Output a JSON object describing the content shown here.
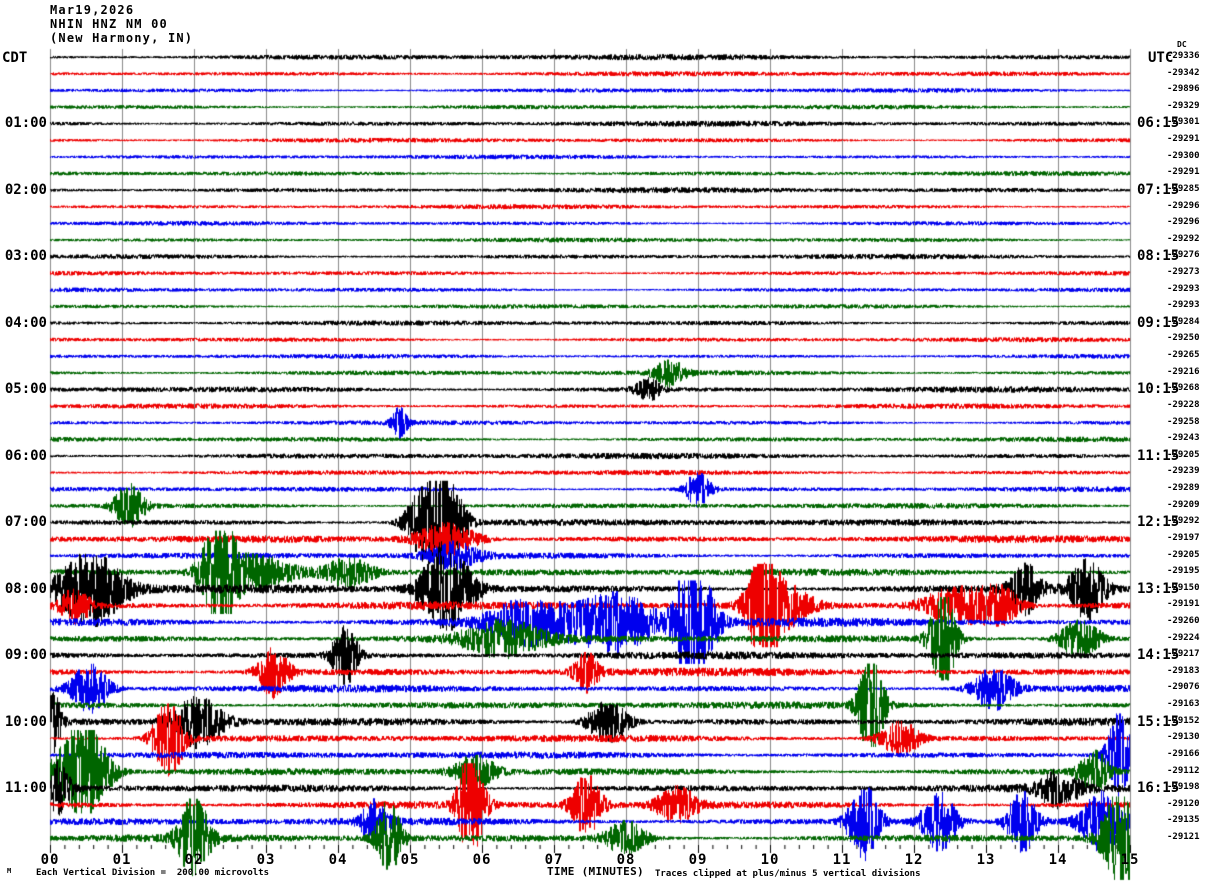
{
  "header": {
    "date": "Mar19,2026",
    "station": "NHIN HNZ NM 00",
    "location": "(New Harmony, IN)"
  },
  "axes": {
    "left_tz": "CDT",
    "right_tz": "UTC",
    "dc_label": "DC",
    "left_hours": [
      "01:00",
      "02:00",
      "03:00",
      "04:00",
      "05:00",
      "06:00",
      "07:00",
      "08:00",
      "09:00",
      "10:00",
      "11:00"
    ],
    "right_hours": [
      "06:15",
      "07:15",
      "08:15",
      "09:15",
      "10:15",
      "11:15",
      "12:15",
      "13:15",
      "14:15",
      "15:15",
      "16:15"
    ],
    "minute_labels": [
      "00",
      "01",
      "02",
      "03",
      "04",
      "05",
      "06",
      "07",
      "08",
      "09",
      "10",
      "11",
      "12",
      "13",
      "14",
      "15"
    ],
    "dc_values": [
      "-29336",
      "-29342",
      "-29896",
      "-29329",
      "-29301",
      "-29291",
      "-29300",
      "-29291",
      "-29285",
      "-29296",
      "-29296",
      "-29292",
      "-29276",
      "-29273",
      "-29293",
      "-29293",
      "-29284",
      "-29250",
      "-29265",
      "-29216",
      "-29268",
      "-29228",
      "-29258",
      "-29243",
      "-29205",
      "-29239",
      "-29289",
      "-29209",
      "-29292",
      "-29197",
      "-29205",
      "-29195",
      "-29150",
      "-29191",
      "-29260",
      "-29224",
      "-29217",
      "-29183",
      "-29076",
      "-29163",
      "-29152",
      "-29130",
      "-29166",
      "-29112",
      "-29198",
      "-29120",
      "-29135",
      "-29121"
    ]
  },
  "footer": {
    "mark": "M",
    "scale_note": "Each Vertical Division =  200.00 microvolts",
    "x_title": "TIME (MINUTES)",
    "clip_note": "Traces clipped at plus/minus 5 vertical divisions"
  },
  "chart_data": {
    "type": "line",
    "subtype": "helicorder",
    "title": "NHIN HNZ NM 00 (New Harmony, IN) Mar19,2026",
    "xlabel": "TIME (MINUTES)",
    "x_range": [
      0,
      15
    ],
    "minutes_per_line": 15,
    "lines": 48,
    "first_line_start_cdt": "00:00",
    "first_line_end_utc": "05:15",
    "utc_offset_hours": 5,
    "scale_microvolts_per_division": 200,
    "clip_divisions": 5,
    "trace_colors": [
      "#000000",
      "#ee0000",
      "#0000ee",
      "#006600"
    ],
    "grid_color": "#888888",
    "noise_amp": [
      2.6,
      2.2,
      2.0,
      2.0,
      2.4,
      2.0,
      1.9,
      2.0,
      2.4,
      2.0,
      1.9,
      2.0,
      2.2,
      1.9,
      1.9,
      2.0,
      2.2,
      2.0,
      1.9,
      2.2,
      2.6,
      2.2,
      2.0,
      2.2,
      2.6,
      2.2,
      2.2,
      2.4,
      3.0,
      3.2,
      2.8,
      3.2,
      3.8,
      3.6,
      3.8,
      3.6,
      3.4,
      3.6,
      3.2,
      3.2,
      3.4,
      3.2,
      3.2,
      3.2,
      3.4,
      3.4,
      3.4,
      3.4
    ],
    "events": [
      {
        "row": 19,
        "t": 8.6,
        "amp": 3,
        "w": 0.3
      },
      {
        "row": 20,
        "t": 8.3,
        "amp": 2.5,
        "w": 0.25
      },
      {
        "row": 22,
        "t": 4.85,
        "amp": 3.5,
        "w": 0.15
      },
      {
        "row": 26,
        "t": 9.0,
        "amp": 4,
        "w": 0.25
      },
      {
        "row": 27,
        "t": 1.1,
        "amp": 5,
        "w": 0.3
      },
      {
        "row": 28,
        "t": 5.2,
        "amp": 9,
        "w": 0.35
      },
      {
        "row": 28,
        "t": 5.55,
        "amp": 10,
        "w": 0.3
      },
      {
        "row": 29,
        "t": 5.5,
        "amp": 4,
        "w": 0.6
      },
      {
        "row": 30,
        "t": 5.6,
        "amp": 3,
        "w": 0.5
      },
      {
        "row": 31,
        "t": 2.35,
        "amp": 12,
        "w": 0.35
      },
      {
        "row": 31,
        "t": 2.9,
        "amp": 4,
        "w": 0.8
      },
      {
        "row": 31,
        "t": 4.15,
        "amp": 3.5,
        "w": 0.5
      },
      {
        "row": 32,
        "t": 0.55,
        "amp": 9,
        "w": 0.65
      },
      {
        "row": 32,
        "t": 5.5,
        "amp": 10,
        "w": 0.5
      },
      {
        "row": 32,
        "t": 13.55,
        "amp": 6,
        "w": 0.3
      },
      {
        "row": 32,
        "t": 14.4,
        "amp": 7,
        "w": 0.35
      },
      {
        "row": 33,
        "t": 0.35,
        "amp": 4,
        "w": 0.3
      },
      {
        "row": 33,
        "t": 9.9,
        "amp": 14,
        "w": 0.3
      },
      {
        "row": 33,
        "t": 10.2,
        "amp": 5,
        "w": 0.5
      },
      {
        "row": 33,
        "t": 12.6,
        "amp": 4.5,
        "w": 0.7
      },
      {
        "row": 33,
        "t": 13.2,
        "amp": 4,
        "w": 0.4
      },
      {
        "row": 34,
        "t": 6.6,
        "amp": 5,
        "w": 0.8
      },
      {
        "row": 34,
        "t": 7.8,
        "amp": 7,
        "w": 0.9
      },
      {
        "row": 34,
        "t": 8.85,
        "amp": 14,
        "w": 0.25
      },
      {
        "row": 34,
        "t": 9.1,
        "amp": 8,
        "w": 0.3
      },
      {
        "row": 35,
        "t": 6.3,
        "amp": 4,
        "w": 0.8
      },
      {
        "row": 35,
        "t": 12.4,
        "amp": 13,
        "w": 0.25
      },
      {
        "row": 35,
        "t": 14.3,
        "amp": 4.5,
        "w": 0.4
      },
      {
        "row": 36,
        "t": 4.1,
        "amp": 7,
        "w": 0.25
      },
      {
        "row": 37,
        "t": 3.1,
        "amp": 6,
        "w": 0.3
      },
      {
        "row": 37,
        "t": 7.45,
        "amp": 4.5,
        "w": 0.25
      },
      {
        "row": 38,
        "t": 0.55,
        "amp": 6,
        "w": 0.35
      },
      {
        "row": 38,
        "t": 13.1,
        "amp": 5,
        "w": 0.4
      },
      {
        "row": 39,
        "t": 11.4,
        "amp": 12,
        "w": 0.25
      },
      {
        "row": 40,
        "t": 0.05,
        "amp": 7,
        "w": 0.15
      },
      {
        "row": 40,
        "t": 2.05,
        "amp": 6,
        "w": 0.5
      },
      {
        "row": 40,
        "t": 7.75,
        "amp": 5,
        "w": 0.4
      },
      {
        "row": 41,
        "t": 1.65,
        "amp": 9,
        "w": 0.3
      },
      {
        "row": 41,
        "t": 11.8,
        "amp": 4,
        "w": 0.4
      },
      {
        "row": 42,
        "t": 14.85,
        "amp": 10,
        "w": 0.25
      },
      {
        "row": 43,
        "t": 0.45,
        "amp": 12,
        "w": 0.5
      },
      {
        "row": 43,
        "t": 5.9,
        "amp": 4,
        "w": 0.4
      },
      {
        "row": 43,
        "t": 14.5,
        "amp": 5,
        "w": 0.3
      },
      {
        "row": 44,
        "t": 0.1,
        "amp": 6,
        "w": 0.25
      },
      {
        "row": 44,
        "t": 14.0,
        "amp": 4,
        "w": 0.4
      },
      {
        "row": 45,
        "t": 5.85,
        "amp": 14,
        "w": 0.25
      },
      {
        "row": 45,
        "t": 7.45,
        "amp": 7,
        "w": 0.3
      },
      {
        "row": 45,
        "t": 8.7,
        "amp": 4,
        "w": 0.4
      },
      {
        "row": 46,
        "t": 4.5,
        "amp": 5,
        "w": 0.25
      },
      {
        "row": 46,
        "t": 11.3,
        "amp": 9,
        "w": 0.3
      },
      {
        "row": 46,
        "t": 12.35,
        "amp": 7,
        "w": 0.35
      },
      {
        "row": 46,
        "t": 13.5,
        "amp": 7,
        "w": 0.3
      },
      {
        "row": 46,
        "t": 14.6,
        "amp": 7,
        "w": 0.4
      },
      {
        "row": 47,
        "t": 2.0,
        "amp": 10,
        "w": 0.3
      },
      {
        "row": 47,
        "t": 4.7,
        "amp": 9,
        "w": 0.25
      },
      {
        "row": 47,
        "t": 8.0,
        "amp": 4,
        "w": 0.4
      },
      {
        "row": 47,
        "t": 14.9,
        "amp": 12,
        "w": 0.4
      }
    ]
  }
}
